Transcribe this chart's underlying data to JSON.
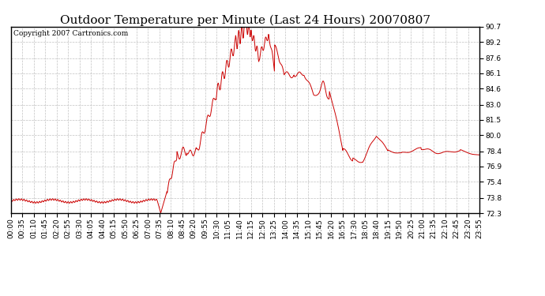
{
  "title": "Outdoor Temperature per Minute (Last 24 Hours) 20070807",
  "copyright_text": "Copyright 2007 Cartronics.com",
  "line_color": "#cc0000",
  "bg_color": "#ffffff",
  "plot_bg_color": "#ffffff",
  "grid_color": "#bbbbbb",
  "yticks": [
    72.3,
    73.8,
    75.4,
    76.9,
    78.4,
    80.0,
    81.5,
    83.0,
    84.6,
    86.1,
    87.6,
    89.2,
    90.7
  ],
  "ylim": [
    72.3,
    90.7
  ],
  "title_fontsize": 11,
  "tick_fontsize": 6.5,
  "copyright_fontsize": 6.5,
  "xtick_labels": [
    "00:00",
    "00:35",
    "01:10",
    "01:45",
    "02:20",
    "02:55",
    "03:30",
    "04:05",
    "04:40",
    "05:15",
    "05:50",
    "06:25",
    "07:00",
    "07:35",
    "08:10",
    "08:45",
    "09:20",
    "09:55",
    "10:30",
    "11:05",
    "11:40",
    "12:15",
    "12:50",
    "13:25",
    "14:00",
    "14:35",
    "15:10",
    "15:45",
    "16:20",
    "16:55",
    "17:30",
    "18:05",
    "18:40",
    "19:15",
    "19:50",
    "20:25",
    "21:00",
    "21:35",
    "22:10",
    "22:45",
    "23:20",
    "23:55"
  ]
}
